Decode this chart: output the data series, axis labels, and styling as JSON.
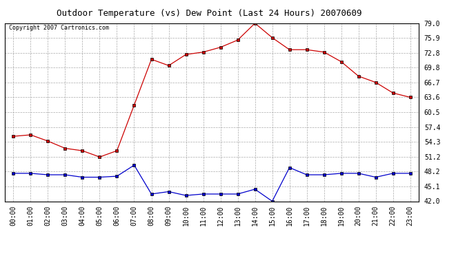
{
  "title": "Outdoor Temperature (vs) Dew Point (Last 24 Hours) 20070609",
  "copyright_text": "Copyright 2007 Cartronics.com",
  "background_color": "#ffffff",
  "plot_bg_color": "#ffffff",
  "grid_color": "#aaaaaa",
  "x_labels": [
    "00:00",
    "01:00",
    "02:00",
    "03:00",
    "04:00",
    "05:00",
    "06:00",
    "07:00",
    "08:00",
    "09:00",
    "10:00",
    "11:00",
    "12:00",
    "13:00",
    "14:00",
    "15:00",
    "16:00",
    "17:00",
    "18:00",
    "19:00",
    "20:00",
    "21:00",
    "22:00",
    "23:00"
  ],
  "y_ticks": [
    42.0,
    45.1,
    48.2,
    51.2,
    54.3,
    57.4,
    60.5,
    63.6,
    66.7,
    69.8,
    72.8,
    75.9,
    79.0
  ],
  "ylim": [
    42.0,
    79.0
  ],
  "temp_color": "#cc0000",
  "dew_color": "#0000cc",
  "temp_values": [
    55.5,
    55.8,
    54.5,
    53.0,
    52.5,
    51.2,
    52.5,
    62.0,
    71.5,
    70.2,
    72.5,
    73.0,
    74.0,
    75.5,
    79.0,
    76.0,
    73.5,
    73.5,
    73.0,
    71.0,
    68.0,
    66.7,
    64.5,
    63.6
  ],
  "dew_values": [
    47.8,
    47.8,
    47.5,
    47.5,
    47.0,
    47.0,
    47.2,
    49.5,
    43.5,
    44.0,
    43.2,
    43.5,
    43.5,
    43.5,
    44.5,
    42.0,
    49.0,
    47.5,
    47.5,
    47.8,
    47.8,
    47.0,
    47.8,
    47.8
  ],
  "title_fontsize": 9,
  "tick_fontsize": 7,
  "copyright_fontsize": 6
}
